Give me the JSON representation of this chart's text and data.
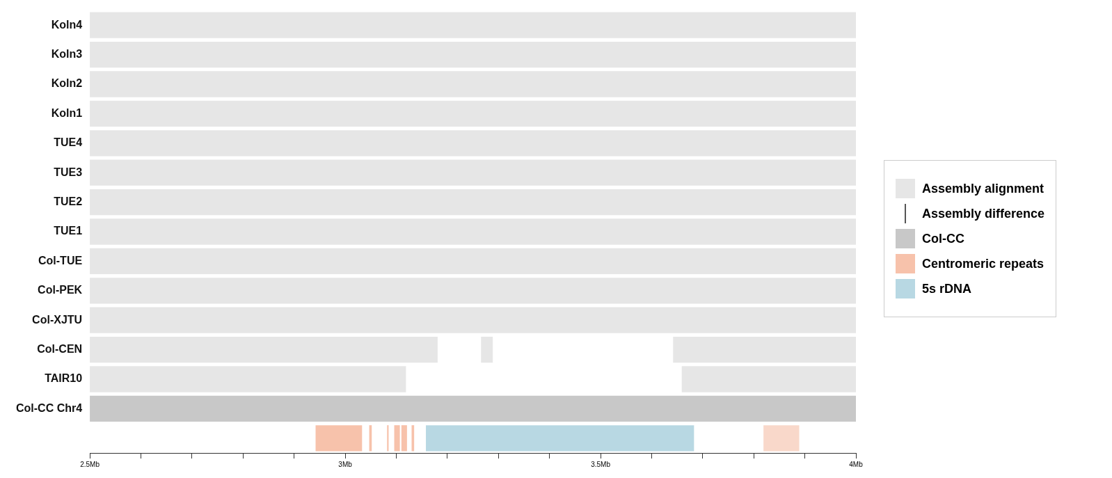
{
  "chart_data": {
    "type": "bar",
    "orientation": "horizontal",
    "categories": [
      "Koln4",
      "Koln3",
      "Koln2",
      "Koln1",
      "TUE4",
      "TUE3",
      "TUE2",
      "TUE1",
      "Col-TUE",
      "Col-PEK",
      "Col-XJTU",
      "Col-CEN",
      "TAIR10",
      "Col-CC Chr4",
      null
    ],
    "series": [
      {
        "name": "Assembly alignment",
        "color": "#e6e6e6",
        "base": [
          2.5,
          2.5,
          2.5,
          2.5,
          2.5,
          2.5,
          2.5,
          2.5,
          2.5,
          2.5,
          2.5,
          2.5,
          2.5,
          null,
          null
        ],
        "values": [
          1.5,
          1.5,
          1.5,
          1.5,
          1.5,
          1.5,
          1.5,
          1.5,
          1.5,
          1.5,
          1.5,
          0.681,
          0.619,
          null,
          null
        ]
      },
      {
        "color": "#e6e6e6",
        "base": [
          null,
          null,
          null,
          null,
          null,
          null,
          null,
          null,
          null,
          null,
          null,
          3.266,
          3.659,
          null,
          null
        ],
        "values": [
          null,
          null,
          null,
          null,
          null,
          null,
          null,
          null,
          null,
          null,
          null,
          0.023,
          0.341,
          null,
          null
        ]
      },
      {
        "color": "#e6e6e6",
        "base": [
          null,
          null,
          null,
          null,
          null,
          null,
          null,
          null,
          null,
          null,
          null,
          3.642,
          null,
          null,
          null
        ],
        "values": [
          null,
          null,
          null,
          null,
          null,
          null,
          null,
          null,
          null,
          null,
          null,
          0.358,
          null,
          null,
          null
        ]
      },
      {
        "name": "Assembly difference",
        "color": "#555555",
        "base": [
          null,
          null,
          null,
          null,
          null,
          null,
          null,
          null,
          null,
          null,
          null,
          null,
          null,
          null,
          null
        ],
        "values": [
          null,
          null,
          null,
          null,
          null,
          null,
          null,
          null,
          null,
          null,
          null,
          null,
          null,
          null,
          null
        ]
      },
      {
        "name": "Col-CC",
        "color": "#c8c8c8",
        "base": [
          null,
          null,
          null,
          null,
          null,
          null,
          null,
          null,
          null,
          null,
          null,
          null,
          null,
          2.5,
          null
        ],
        "values": [
          null,
          null,
          null,
          null,
          null,
          null,
          null,
          null,
          null,
          null,
          null,
          null,
          null,
          1.5,
          null
        ]
      },
      {
        "name": "Centromeric repeats",
        "color": "#f7c2ab",
        "base": [
          null,
          null,
          null,
          null,
          null,
          null,
          null,
          null,
          null,
          null,
          null,
          null,
          null,
          null,
          2.942
        ],
        "values": [
          null,
          null,
          null,
          null,
          null,
          null,
          null,
          null,
          null,
          null,
          null,
          null,
          null,
          null,
          0.091
        ]
      },
      {
        "color": "#f7c2ab",
        "base": [
          null,
          null,
          null,
          null,
          null,
          null,
          null,
          null,
          null,
          null,
          null,
          null,
          null,
          null,
          3.047
        ],
        "values": [
          null,
          null,
          null,
          null,
          null,
          null,
          null,
          null,
          null,
          null,
          null,
          null,
          null,
          null,
          0.005
        ]
      },
      {
        "color": "#f7c2ab",
        "base": [
          null,
          null,
          null,
          null,
          null,
          null,
          null,
          null,
          null,
          null,
          null,
          null,
          null,
          null,
          3.082
        ],
        "values": [
          null,
          null,
          null,
          null,
          null,
          null,
          null,
          null,
          null,
          null,
          null,
          null,
          null,
          null,
          0.003
        ]
      },
      {
        "color": "#f7c2ab",
        "base": [
          null,
          null,
          null,
          null,
          null,
          null,
          null,
          null,
          null,
          null,
          null,
          null,
          null,
          null,
          3.096
        ],
        "values": [
          null,
          null,
          null,
          null,
          null,
          null,
          null,
          null,
          null,
          null,
          null,
          null,
          null,
          null,
          0.011
        ]
      },
      {
        "color": "#f7c2ab",
        "base": [
          null,
          null,
          null,
          null,
          null,
          null,
          null,
          null,
          null,
          null,
          null,
          null,
          null,
          null,
          3.11
        ],
        "values": [
          null,
          null,
          null,
          null,
          null,
          null,
          null,
          null,
          null,
          null,
          null,
          null,
          null,
          null,
          0.011
        ]
      },
      {
        "color": "#f7c2ab",
        "base": [
          null,
          null,
          null,
          null,
          null,
          null,
          null,
          null,
          null,
          null,
          null,
          null,
          null,
          null,
          3.13
        ],
        "values": [
          null,
          null,
          null,
          null,
          null,
          null,
          null,
          null,
          null,
          null,
          null,
          null,
          null,
          null,
          0.005
        ]
      },
      {
        "color": "#f9d8ca",
        "base": [
          null,
          null,
          null,
          null,
          null,
          null,
          null,
          null,
          null,
          null,
          null,
          null,
          null,
          null,
          3.819
        ],
        "values": [
          null,
          null,
          null,
          null,
          null,
          null,
          null,
          null,
          null,
          null,
          null,
          null,
          null,
          null,
          0.07
        ]
      },
      {
        "name": "5s rDNA",
        "color": "#b8d8e3",
        "base": [
          null,
          null,
          null,
          null,
          null,
          null,
          null,
          null,
          null,
          null,
          null,
          null,
          null,
          null,
          3.158
        ],
        "values": [
          null,
          null,
          null,
          null,
          null,
          null,
          null,
          null,
          null,
          null,
          null,
          null,
          null,
          null,
          0.525
        ]
      }
    ],
    "xlim": [
      2.5,
      4
    ],
    "xticks": [
      {
        "value": 2.5,
        "label": "2.5Mb"
      },
      {
        "value": 2.6,
        "label": null
      },
      {
        "value": 2.7,
        "label": null
      },
      {
        "value": 2.8,
        "label": null
      },
      {
        "value": 2.9,
        "label": null
      },
      {
        "value": 3,
        "label": "3Mb"
      },
      {
        "value": 3.1,
        "label": null
      },
      {
        "value": 3.2,
        "label": null
      },
      {
        "value": 3.3,
        "label": null
      },
      {
        "value": 3.4,
        "label": null
      },
      {
        "value": 3.5,
        "label": "3.5Mb"
      },
      {
        "value": 3.6,
        "label": null
      },
      {
        "value": 3.7,
        "label": null
      },
      {
        "value": 3.8,
        "label": null
      },
      {
        "value": 3.9,
        "label": null
      },
      {
        "value": 4,
        "label": "4Mb"
      }
    ],
    "legend": "right",
    "grid": false
  }
}
